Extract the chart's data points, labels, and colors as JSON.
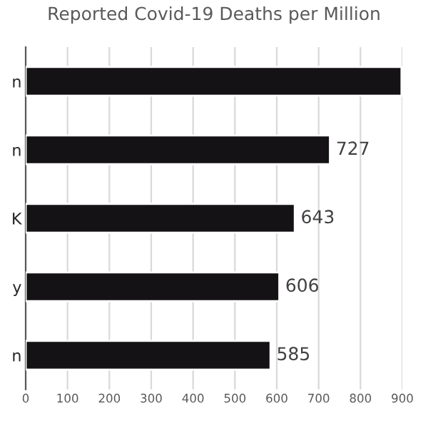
{
  "chart_data": {
    "type": "bar",
    "orientation": "horizontal",
    "title": "Reported Covid-19 Deaths per Million",
    "categories": [
      "n",
      "n",
      "K",
      "y",
      "n"
    ],
    "values": [
      898,
      727,
      643,
      606,
      585
    ],
    "value_labels": [
      null,
      "727",
      "643",
      "606",
      "585"
    ],
    "color": "#141214",
    "xlim": [
      0,
      900
    ],
    "xticks": [
      0,
      100,
      200,
      300,
      400,
      500,
      600,
      700,
      800,
      900
    ],
    "grid": "x",
    "legend": false
  }
}
